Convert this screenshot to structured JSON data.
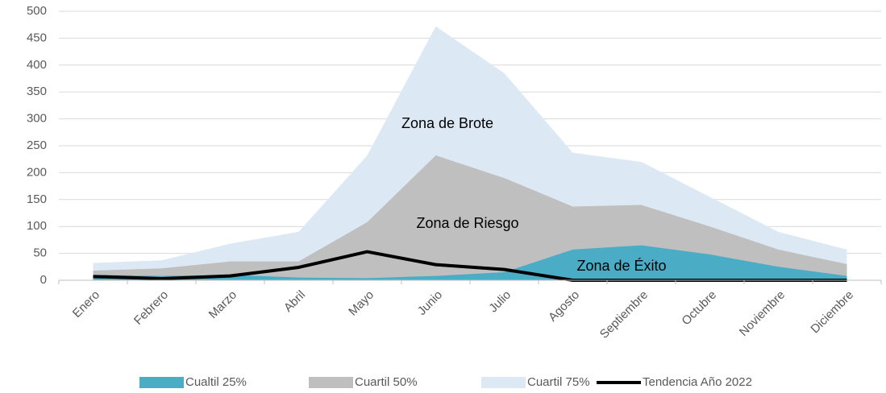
{
  "chart_data": {
    "type": "area",
    "categories": [
      "Enero",
      "Febrero",
      "Marzo",
      "Abril",
      "Mayo",
      "Junio",
      "Julio",
      "Agosto",
      "Septiembre",
      "Octubre",
      "Noviembre",
      "Diciembre"
    ],
    "series": [
      {
        "name": "Cuartil 75%",
        "color": "#dce9f5",
        "values": [
          32,
          37,
          68,
          90,
          232,
          472,
          385,
          237,
          220,
          155,
          90,
          57
        ]
      },
      {
        "name": "Cuartil 50%",
        "color": "#bfbfbf",
        "values": [
          18,
          22,
          35,
          35,
          108,
          232,
          190,
          137,
          140,
          100,
          57,
          30
        ]
      },
      {
        "name": "Cualtil 25%",
        "color": "#4bacc6",
        "values": [
          10,
          8,
          10,
          5,
          4,
          8,
          15,
          57,
          65,
          48,
          25,
          8
        ]
      },
      {
        "name": "Tendencia Año 2022",
        "color": "#000000",
        "line": true,
        "values": [
          7,
          3,
          8,
          24,
          53,
          29,
          20,
          0,
          0,
          0,
          0,
          0
        ]
      }
    ],
    "annotations": [
      "Zona de Brote",
      "Zona de Riesgo",
      "Zona de Éxito"
    ],
    "ylim": [
      0,
      500
    ],
    "yticks": [
      0,
      50,
      100,
      150,
      200,
      250,
      300,
      350,
      400,
      450,
      500
    ],
    "grid": true
  }
}
